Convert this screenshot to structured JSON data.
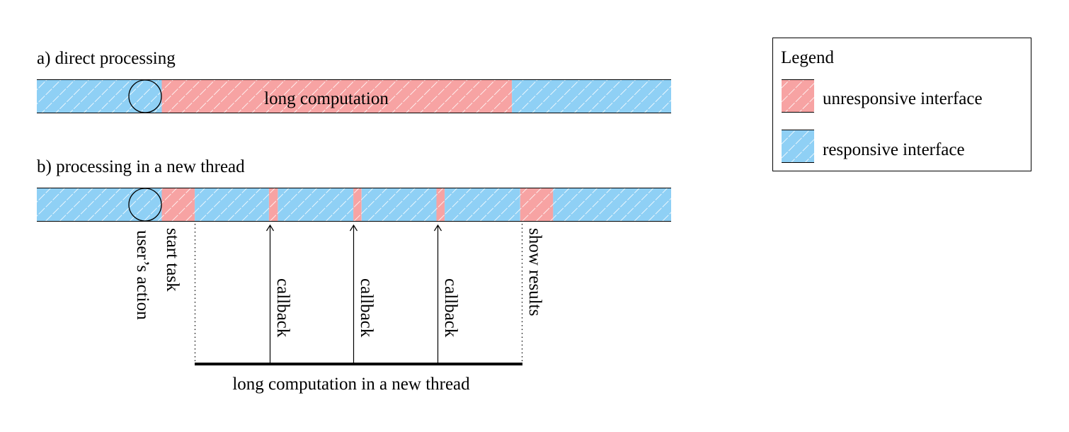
{
  "colors": {
    "unresponsive": "#f7a3a3",
    "responsive": "#8fd0f5",
    "hatch": "#ffffff",
    "line": "#000000"
  },
  "row_a": {
    "title": "a) direct processing",
    "bar_label": "long computation",
    "segments": [
      {
        "state": "responsive",
        "start": 0,
        "end": 0.197
      },
      {
        "state": "unresponsive",
        "start": 0.197,
        "end": 0.749
      },
      {
        "state": "responsive",
        "start": 0.749,
        "end": 1
      }
    ],
    "action_at": 0.17
  },
  "row_b": {
    "title": "b) processing in a new thread",
    "segments": [
      {
        "state": "responsive",
        "start": 0,
        "end": 0.197
      },
      {
        "state": "unresponsive",
        "start": 0.197,
        "end": 0.249
      },
      {
        "state": "responsive",
        "start": 0.249,
        "end": 0.366
      },
      {
        "state": "unresponsive",
        "start": 0.366,
        "end": 0.38
      },
      {
        "state": "responsive",
        "start": 0.38,
        "end": 0.499
      },
      {
        "state": "unresponsive",
        "start": 0.499,
        "end": 0.512
      },
      {
        "state": "responsive",
        "start": 0.512,
        "end": 0.63
      },
      {
        "state": "unresponsive",
        "start": 0.63,
        "end": 0.643
      },
      {
        "state": "responsive",
        "start": 0.643,
        "end": 0.762
      },
      {
        "state": "unresponsive",
        "start": 0.762,
        "end": 0.814
      },
      {
        "state": "responsive",
        "start": 0.814,
        "end": 1
      }
    ],
    "action_at": 0.17,
    "annotations": {
      "users_action": "user’s action",
      "start_task": "start task",
      "callback": "callback",
      "show_results": "show results",
      "thread_label": "long computation in a new thread"
    },
    "callbacks_at": [
      0.366,
      0.499,
      0.63
    ],
    "thread_start": 0.249,
    "thread_end": 0.762
  },
  "legend": {
    "title": "Legend",
    "items": [
      {
        "state": "unresponsive",
        "label": "unresponsive interface"
      },
      {
        "state": "responsive",
        "label": "responsive interface"
      }
    ]
  }
}
